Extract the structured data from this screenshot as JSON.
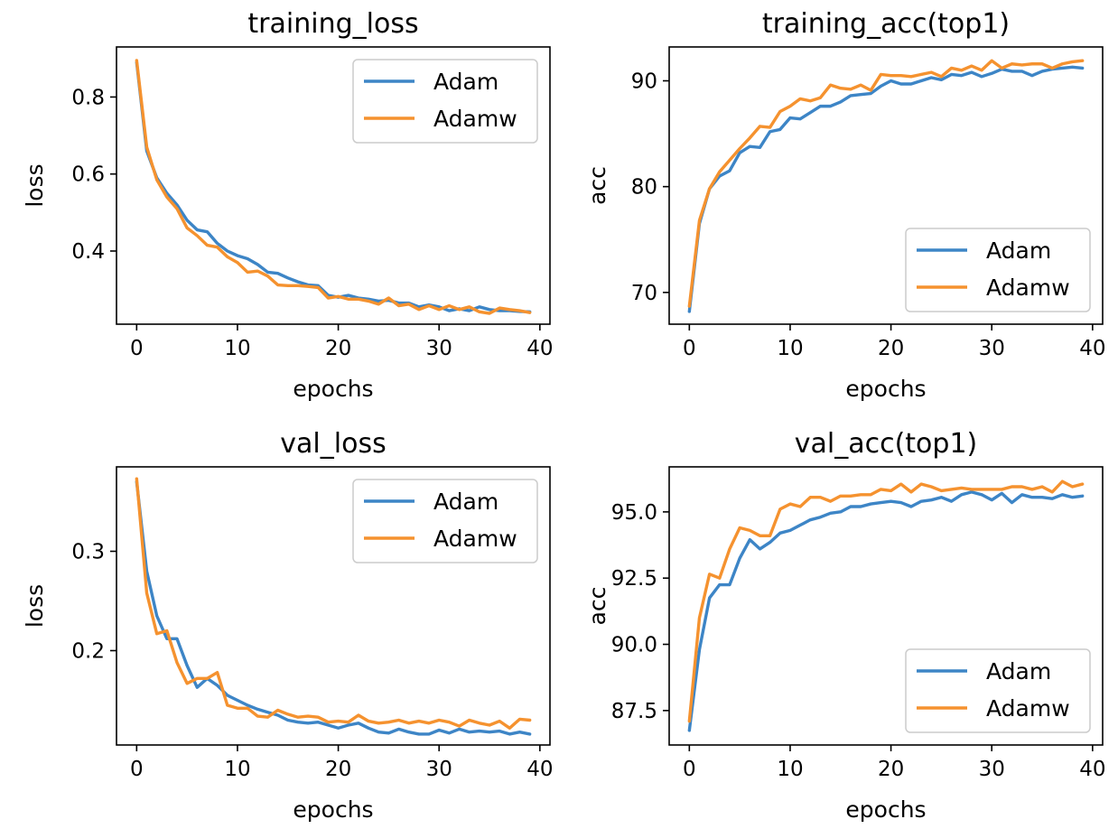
{
  "colors": {
    "Adam": "#3d85c6",
    "Adamw": "#f5922f"
  },
  "chart_data": [
    {
      "id": "training-loss",
      "type": "line",
      "title": "training_loss",
      "xlabel": "epochs",
      "ylabel": "loss",
      "xlim": [
        -2,
        41
      ],
      "ylim": [
        0.21,
        0.93
      ],
      "xticks": [
        0,
        10,
        20,
        30,
        40
      ],
      "yticks": [
        0.4,
        0.6,
        0.8
      ],
      "ytick_labels": [
        "0.4",
        "0.6",
        "0.8"
      ],
      "legend": "top-right",
      "grid": false,
      "x": [
        0,
        1,
        2,
        3,
        4,
        5,
        6,
        7,
        8,
        9,
        10,
        11,
        12,
        13,
        14,
        15,
        16,
        17,
        18,
        19,
        20,
        21,
        22,
        23,
        24,
        25,
        26,
        27,
        28,
        29,
        30,
        31,
        32,
        33,
        34,
        35,
        36,
        37,
        38,
        39
      ],
      "series": [
        {
          "name": "Adam",
          "values": [
            0.89,
            0.66,
            0.59,
            0.55,
            0.52,
            0.48,
            0.455,
            0.45,
            0.42,
            0.4,
            0.388,
            0.38,
            0.365,
            0.345,
            0.342,
            0.33,
            0.32,
            0.312,
            0.31,
            0.285,
            0.28,
            0.285,
            0.278,
            0.275,
            0.27,
            0.272,
            0.265,
            0.265,
            0.255,
            0.26,
            0.255,
            0.245,
            0.25,
            0.245,
            0.255,
            0.248,
            0.245,
            0.245,
            0.243,
            0.242
          ]
        },
        {
          "name": "Adamw",
          "values": [
            0.895,
            0.67,
            0.585,
            0.54,
            0.51,
            0.46,
            0.44,
            0.415,
            0.41,
            0.385,
            0.37,
            0.345,
            0.348,
            0.335,
            0.312,
            0.31,
            0.31,
            0.308,
            0.305,
            0.278,
            0.282,
            0.275,
            0.275,
            0.27,
            0.262,
            0.278,
            0.258,
            0.262,
            0.248,
            0.258,
            0.248,
            0.258,
            0.248,
            0.255,
            0.242,
            0.238,
            0.252,
            0.248,
            0.245,
            0.24
          ]
        }
      ]
    },
    {
      "id": "training-acc",
      "type": "line",
      "title": "training_acc(top1)",
      "xlabel": "epochs",
      "ylabel": "acc",
      "xlim": [
        -2,
        41
      ],
      "ylim": [
        67,
        93.2
      ],
      "xticks": [
        0,
        10,
        20,
        30,
        40
      ],
      "yticks": [
        70,
        80,
        90
      ],
      "ytick_labels": [
        "70",
        "80",
        "90"
      ],
      "legend": "bottom-right",
      "grid": false,
      "x": [
        0,
        1,
        2,
        3,
        4,
        5,
        6,
        7,
        8,
        9,
        10,
        11,
        12,
        13,
        14,
        15,
        16,
        17,
        18,
        19,
        20,
        21,
        22,
        23,
        24,
        25,
        26,
        27,
        28,
        29,
        30,
        31,
        32,
        33,
        34,
        35,
        36,
        37,
        38,
        39
      ],
      "series": [
        {
          "name": "Adam",
          "values": [
            68.2,
            76.5,
            79.8,
            81.0,
            81.5,
            83.2,
            83.8,
            83.7,
            85.2,
            85.4,
            86.5,
            86.4,
            87.0,
            87.6,
            87.6,
            88.0,
            88.6,
            88.7,
            88.8,
            89.5,
            90.0,
            89.7,
            89.7,
            90.0,
            90.3,
            90.1,
            90.6,
            90.5,
            90.8,
            90.4,
            90.7,
            91.1,
            90.9,
            90.9,
            90.5,
            90.9,
            91.1,
            91.2,
            91.3,
            91.2
          ]
        },
        {
          "name": "Adamw",
          "values": [
            68.7,
            76.8,
            79.8,
            81.4,
            82.5,
            83.6,
            84.6,
            85.7,
            85.6,
            87.1,
            87.6,
            88.3,
            88.1,
            88.4,
            89.6,
            89.3,
            89.2,
            89.6,
            89.1,
            90.6,
            90.5,
            90.5,
            90.4,
            90.6,
            90.8,
            90.4,
            91.2,
            91.0,
            91.4,
            91.0,
            91.9,
            91.2,
            91.6,
            91.5,
            91.6,
            91.6,
            91.2,
            91.6,
            91.8,
            91.9
          ]
        }
      ]
    },
    {
      "id": "val-loss",
      "type": "line",
      "title": "val_loss",
      "xlabel": "epochs",
      "ylabel": "loss",
      "xlim": [
        -2,
        41
      ],
      "ylim": [
        0.105,
        0.385
      ],
      "xticks": [
        0,
        10,
        20,
        30,
        40
      ],
      "yticks": [
        0.2,
        0.3
      ],
      "ytick_labels": [
        "0.2",
        "0.3"
      ],
      "legend": "top-right",
      "grid": false,
      "x": [
        0,
        1,
        2,
        3,
        4,
        5,
        6,
        7,
        8,
        9,
        10,
        11,
        12,
        13,
        14,
        15,
        16,
        17,
        18,
        19,
        20,
        21,
        22,
        23,
        24,
        25,
        26,
        27,
        28,
        29,
        30,
        31,
        32,
        33,
        34,
        35,
        36,
        37,
        38,
        39
      ],
      "series": [
        {
          "name": "Adam",
          "values": [
            0.37,
            0.28,
            0.235,
            0.212,
            0.212,
            0.185,
            0.163,
            0.172,
            0.165,
            0.155,
            0.15,
            0.145,
            0.141,
            0.138,
            0.135,
            0.13,
            0.128,
            0.127,
            0.128,
            0.125,
            0.122,
            0.125,
            0.127,
            0.122,
            0.118,
            0.117,
            0.121,
            0.118,
            0.116,
            0.116,
            0.12,
            0.117,
            0.121,
            0.118,
            0.119,
            0.118,
            0.119,
            0.116,
            0.118,
            0.116
          ]
        },
        {
          "name": "Adamw",
          "values": [
            0.373,
            0.258,
            0.217,
            0.22,
            0.188,
            0.167,
            0.172,
            0.172,
            0.178,
            0.145,
            0.142,
            0.142,
            0.134,
            0.133,
            0.14,
            0.136,
            0.133,
            0.134,
            0.133,
            0.128,
            0.129,
            0.128,
            0.135,
            0.129,
            0.127,
            0.128,
            0.13,
            0.127,
            0.129,
            0.127,
            0.13,
            0.128,
            0.124,
            0.13,
            0.127,
            0.125,
            0.129,
            0.122,
            0.131,
            0.13
          ]
        }
      ]
    },
    {
      "id": "val-acc",
      "type": "line",
      "title": "val_acc(top1)",
      "xlabel": "epochs",
      "ylabel": "acc",
      "xlim": [
        -2,
        41
      ],
      "ylim": [
        86.2,
        96.7
      ],
      "xticks": [
        0,
        10,
        20,
        30,
        40
      ],
      "yticks": [
        87.5,
        90.0,
        92.5,
        95.0
      ],
      "ytick_labels": [
        "87.5",
        "90.0",
        "92.5",
        "95.0"
      ],
      "legend": "bottom-right",
      "grid": false,
      "x": [
        0,
        1,
        2,
        3,
        4,
        5,
        6,
        7,
        8,
        9,
        10,
        11,
        12,
        13,
        14,
        15,
        16,
        17,
        18,
        19,
        20,
        21,
        22,
        23,
        24,
        25,
        26,
        27,
        28,
        29,
        30,
        31,
        32,
        33,
        34,
        35,
        36,
        37,
        38,
        39
      ],
      "series": [
        {
          "name": "Adam",
          "values": [
            86.75,
            89.8,
            91.75,
            92.25,
            92.25,
            93.25,
            93.95,
            93.6,
            93.85,
            94.2,
            94.3,
            94.5,
            94.7,
            94.8,
            94.95,
            95.0,
            95.2,
            95.2,
            95.3,
            95.35,
            95.4,
            95.35,
            95.2,
            95.4,
            95.45,
            95.55,
            95.4,
            95.65,
            95.75,
            95.65,
            95.45,
            95.7,
            95.35,
            95.65,
            95.55,
            95.55,
            95.5,
            95.65,
            95.55,
            95.6
          ]
        },
        {
          "name": "Adamw",
          "values": [
            87.1,
            91.0,
            92.65,
            92.5,
            93.6,
            94.4,
            94.3,
            94.1,
            94.1,
            95.1,
            95.3,
            95.2,
            95.55,
            95.55,
            95.4,
            95.6,
            95.6,
            95.65,
            95.65,
            95.85,
            95.8,
            96.05,
            95.75,
            96.05,
            95.95,
            95.8,
            95.85,
            95.9,
            95.85,
            95.85,
            95.85,
            95.85,
            95.95,
            95.95,
            95.85,
            95.95,
            95.75,
            96.15,
            95.95,
            96.05
          ]
        }
      ]
    }
  ]
}
